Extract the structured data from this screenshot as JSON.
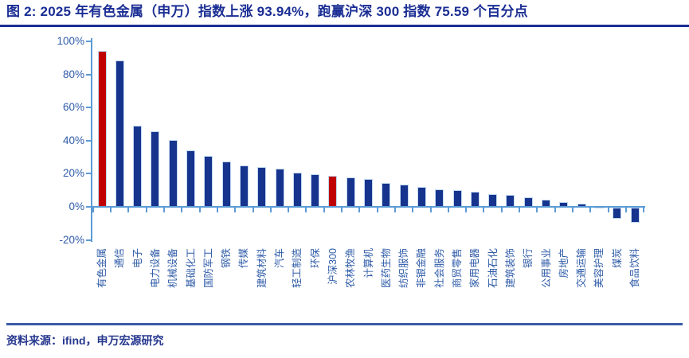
{
  "title": "图 2: 2025 年有色金属（申万）指数上涨 93.94%，跑赢沪深 300 指数 75.59 个百分点",
  "footer": {
    "source_text": "资料来源：ifind，申万宏源研究"
  },
  "colors": {
    "title_navy": "#1b2e94",
    "axis_label_blue": "#2e5ba8",
    "axis_line_blue": "#5b9bd5",
    "bar_navy": "#16338e",
    "highlight_red": "#c00000",
    "divider_blue": "#3a5ba9",
    "footer_text_blue": "#27388f"
  },
  "chart_data": {
    "type": "bar",
    "title": "",
    "xlabel": "",
    "ylabel": "",
    "ytick_format": "percent",
    "ylim": [
      -20,
      100
    ],
    "yticks": [
      100,
      80,
      60,
      40,
      20,
      0,
      -20
    ],
    "grid": false,
    "legend": false,
    "categories": [
      "有色金属",
      "通信",
      "电子",
      "电力设备",
      "机械设备",
      "基础化工",
      "国防军工",
      "钢铁",
      "传媒",
      "建筑材料",
      "汽车",
      "轻工制造",
      "环保",
      "沪深300",
      "农林牧渔",
      "计算机",
      "医药生物",
      "纺织服饰",
      "非银金融",
      "社会服务",
      "商贸零售",
      "家用电器",
      "石油石化",
      "建筑装饰",
      "银行",
      "公用事业",
      "房地产",
      "交通运输",
      "美容护理",
      "煤炭",
      "食品饮料"
    ],
    "values": [
      93.94,
      88,
      48.5,
      45,
      40,
      33.5,
      30.5,
      27,
      24.5,
      23.5,
      22.5,
      20,
      19,
      18.35,
      17.3,
      16.5,
      14,
      13,
      11.7,
      10,
      9.5,
      8.5,
      7.2,
      6.7,
      5.2,
      3.7,
      2.4,
      1.6,
      0.2,
      -5.8,
      -8.3
    ],
    "highlight_indices": [
      0,
      13
    ],
    "bar_color": "#16338e",
    "highlight_color": "#c00000",
    "annotations": {
      "nonferrous_gain_pct": "93.94",
      "outperformance_vs_csi300_pp": "75.59"
    }
  }
}
